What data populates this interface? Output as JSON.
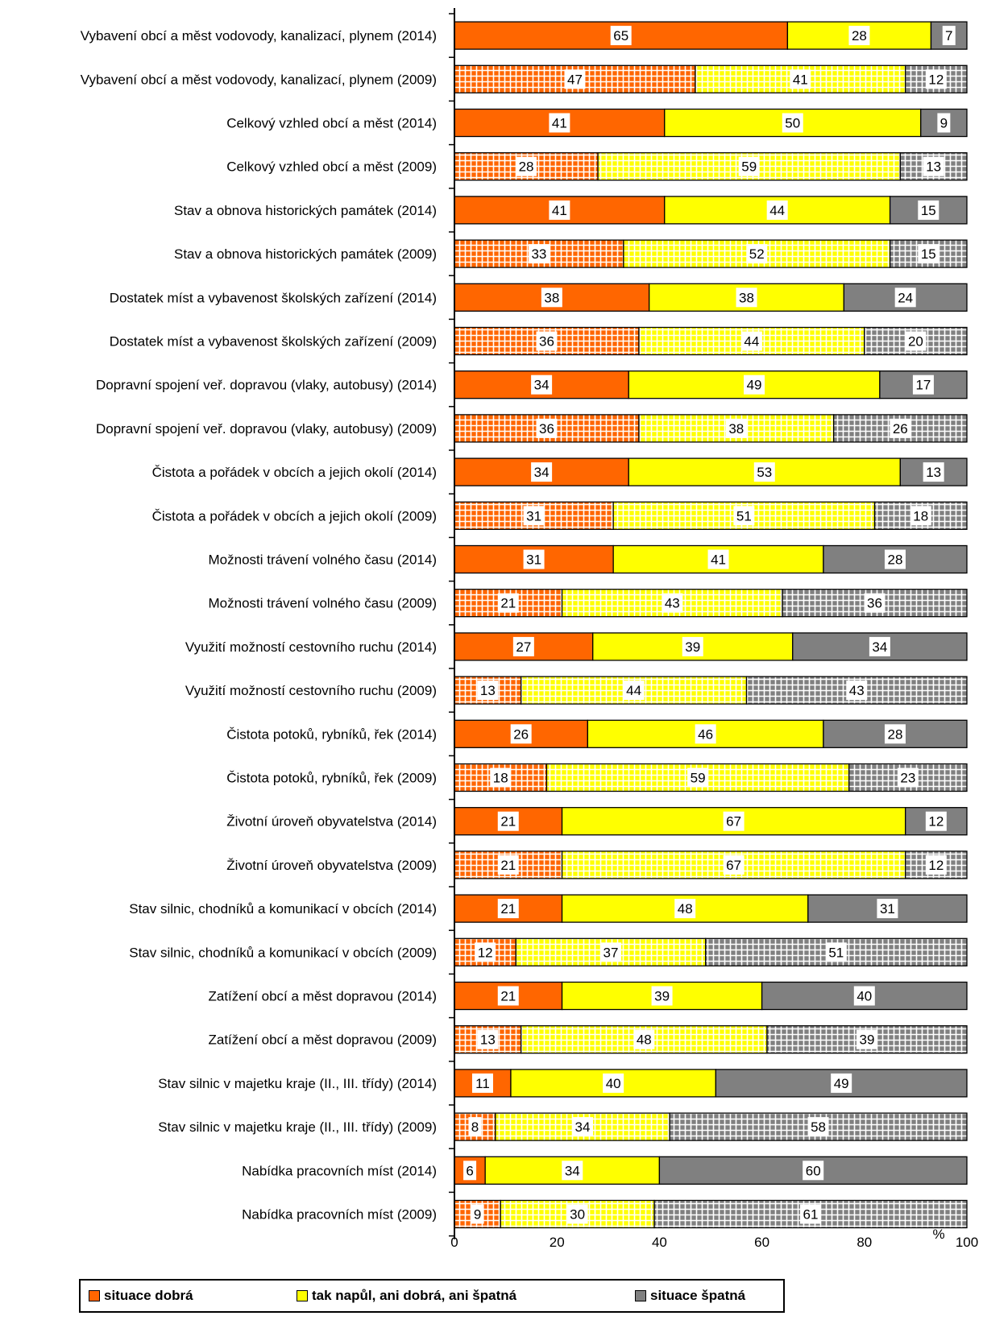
{
  "chart_data": {
    "type": "bar",
    "orientation": "horizontal",
    "stacked": true,
    "unit": "%",
    "xlim": [
      0,
      100
    ],
    "xticks": [
      "0",
      "20",
      "40",
      "60",
      "80",
      "100"
    ],
    "categories": [
      "Vybavení obcí a měst vodovody, kanalizací, plynem (2014)",
      "Vybavení obcí a měst vodovody, kanalizací, plynem (2009)",
      "Celkový vzhled obcí a měst (2014)",
      "Celkový vzhled obcí a měst (2009)",
      "Stav a obnova historických památek (2014)",
      "Stav a obnova historických památek (2009)",
      "Dostatek míst a vybavenost školských zařízení (2014)",
      "Dostatek míst a vybavenost školských zařízení (2009)",
      "Dopravní spojení veř. dopravou (vlaky, autobusy) (2014)",
      "Dopravní spojení veř. dopravou (vlaky, autobusy) (2009)",
      "Čistota a pořádek v obcích a jejich okolí (2014)",
      "Čistota a pořádek v obcích a jejich okolí (2009)",
      "Možnosti trávení volného času (2014)",
      "Možnosti trávení volného času (2009)",
      "Využití možností cestovního ruchu (2014)",
      "Využití možností cestovního ruchu (2009)",
      "Čistota potoků, rybníků, řek (2014)",
      "Čistota potoků, rybníků, řek (2009)",
      "Životní úroveň obyvatelstva (2014)",
      "Životní úroveň obyvatelstva (2009)",
      "Stav silnic, chodníků a komunikací v obcích (2014)",
      "Stav silnic, chodníků a komunikací v obcích (2009)",
      "Zatížení obcí a měst dopravou (2014)",
      "Zatížení obcí a měst dopravou (2009)",
      "Stav silnic v majetku kraje (II., III. třídy) (2014)",
      "Stav silnic v majetku kraje (II., III. třídy) (2009)",
      "Nabídka pracovních míst (2014)",
      "Nabídka pracovních míst (2009)"
    ],
    "hatched_rows": "rows labelled (2009) are drawn with grid hatching",
    "series": [
      {
        "name": "situace dobrá",
        "color": "#FF6600",
        "values": [
          65,
          47,
          41,
          28,
          41,
          33,
          38,
          36,
          34,
          36,
          34,
          31,
          31,
          21,
          27,
          13,
          26,
          18,
          21,
          21,
          21,
          12,
          21,
          13,
          11,
          8,
          6,
          9
        ]
      },
      {
        "name": "tak napůl, ani dobrá, ani špatná",
        "color": "#FFFF00",
        "values": [
          28,
          41,
          50,
          59,
          44,
          52,
          38,
          44,
          49,
          38,
          53,
          51,
          41,
          43,
          39,
          44,
          46,
          59,
          67,
          67,
          48,
          37,
          39,
          48,
          40,
          34,
          34,
          30
        ]
      },
      {
        "name": "situace špatná",
        "color": "#808080",
        "values": [
          7,
          12,
          9,
          13,
          15,
          15,
          24,
          20,
          17,
          26,
          13,
          18,
          28,
          36,
          34,
          43,
          28,
          23,
          12,
          12,
          31,
          51,
          40,
          39,
          49,
          58,
          60,
          61
        ]
      }
    ]
  }
}
